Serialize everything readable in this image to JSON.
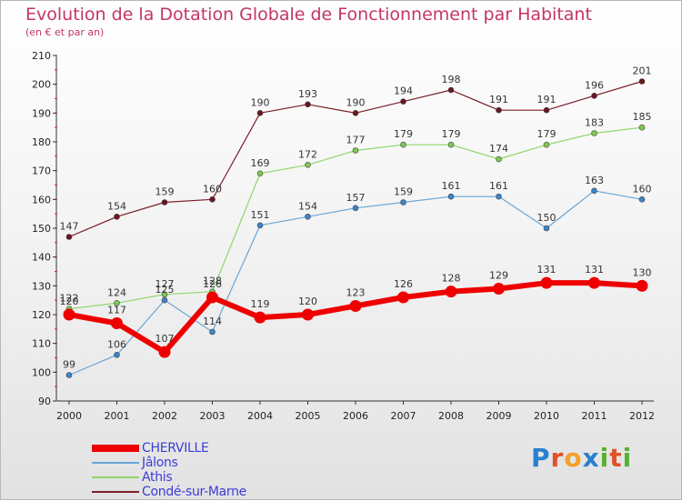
{
  "title": "Evolution de la Dotation Globale de Fonctionnement par Habitant",
  "subtitle": "(en € et par an)",
  "logo": {
    "text": "Proxiti",
    "letters": [
      {
        "ch": "P",
        "color": "#2a7fd0"
      },
      {
        "ch": "r",
        "color": "#e0522a"
      },
      {
        "ch": "o",
        "color": "#f2a12a"
      },
      {
        "ch": "x",
        "color": "#2a7fd0"
      },
      {
        "ch": "i",
        "color": "#58b030"
      },
      {
        "ch": "t",
        "color": "#e0522a"
      },
      {
        "ch": "i",
        "color": "#58b030"
      }
    ]
  },
  "chart_data": {
    "type": "line",
    "x": [
      2000,
      2001,
      2002,
      2003,
      2004,
      2005,
      2006,
      2007,
      2008,
      2009,
      2010,
      2011,
      2012
    ],
    "ylim": [
      90,
      210
    ],
    "yticks": [
      90,
      100,
      110,
      120,
      130,
      140,
      150,
      160,
      170,
      180,
      190,
      200,
      210
    ],
    "grid": "none",
    "legend": "bottom-left",
    "series": [
      {
        "name": "Condé-sur-Marne",
        "color": "#7a1e28",
        "marker": "#6a1520",
        "width": 1.2,
        "values": [
          147,
          154,
          159,
          160,
          190,
          193,
          190,
          194,
          198,
          191,
          191,
          196,
          201
        ]
      },
      {
        "name": "Athis",
        "color": "#8fd66a",
        "marker": "#7ec850",
        "width": 1.2,
        "values": [
          122,
          124,
          127,
          128,
          169,
          172,
          177,
          179,
          179,
          174,
          179,
          183,
          185
        ]
      },
      {
        "name": "Jâlons",
        "color": "#6aa6d6",
        "marker": "#3a84c8",
        "width": 1.2,
        "values": [
          99,
          106,
          125,
          114,
          151,
          154,
          157,
          159,
          161,
          161,
          150,
          163,
          160
        ]
      },
      {
        "name": "CHERVILLE",
        "color": "#ee0000",
        "marker": "#ee0000",
        "width": 6,
        "values": [
          120,
          117,
          107,
          126,
          119,
          120,
          123,
          126,
          128,
          129,
          131,
          131,
          130
        ]
      }
    ],
    "legend_order": [
      "CHERVILLE",
      "Jâlons",
      "Athis",
      "Condé-sur-Marne"
    ]
  }
}
